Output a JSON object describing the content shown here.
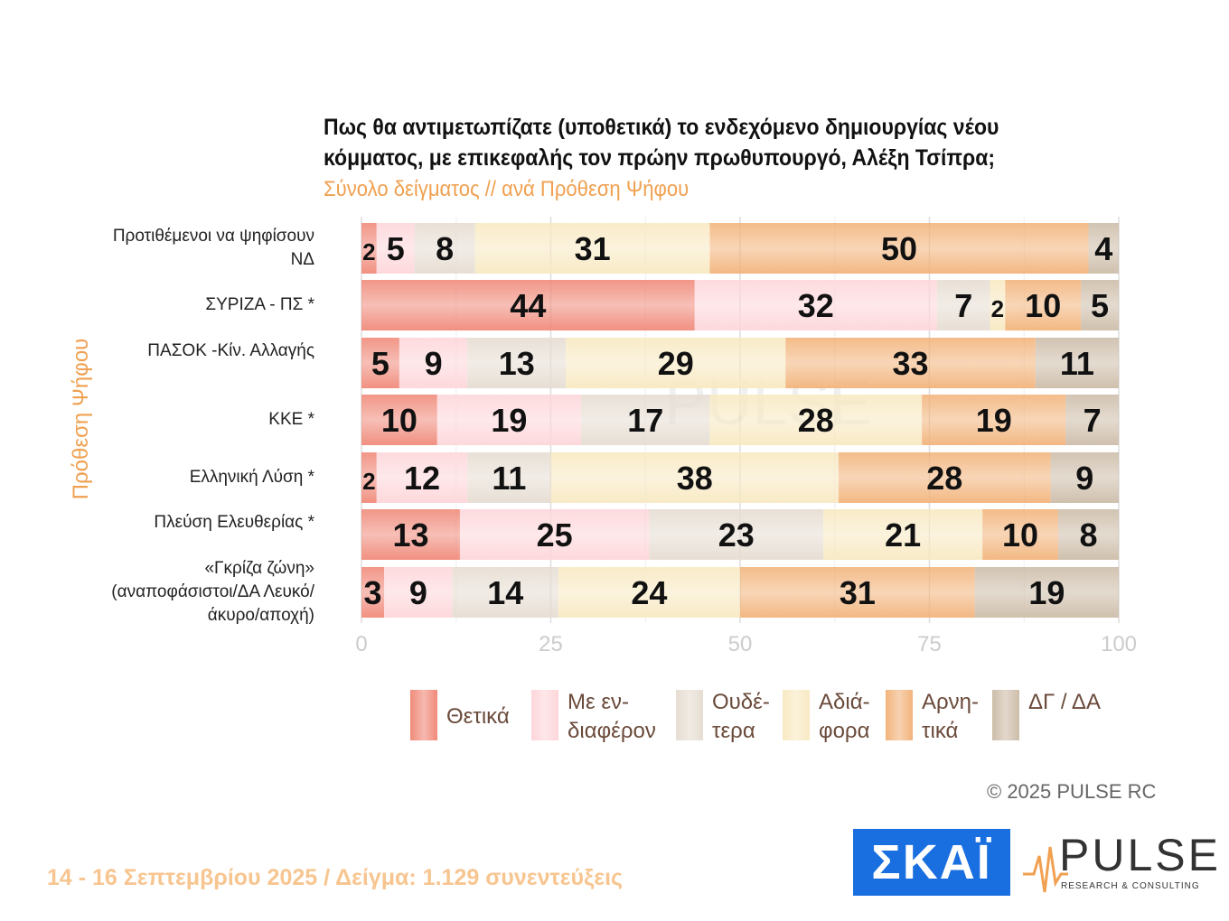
{
  "title": "Πως θα αντιμετωπίζατε (υποθετικά) το ενδεχόμενο δημιουργίας νέου κόμματος, με επικεφαλής τον πρώην πρωθυπουργό, Αλέξη Τσίπρα;",
  "subtitle": "Σύνολο δείγματος // ανά Πρόθεση Ψήφου",
  "watermark": "PULSE RESEARCH & CONSULTING",
  "footer": "14 - 16 Σεπτεμβρίου 2025  /  Δείγμα:  1.129 συνεντεύξεις",
  "copyright": "©  2025  PULSE RC",
  "logos": {
    "skai": "ΣΚΑΪ",
    "pulse": "PULSE",
    "pulse_sub": "RESEARCH & CONSULTING"
  },
  "chart_data": {
    "type": "bar",
    "orientation": "horizontal",
    "stacked": true,
    "ylabel": "Πρόθεση Ψήφου",
    "xlim": [
      0,
      100
    ],
    "xticks": [
      "0",
      "25",
      "50",
      "75",
      "100"
    ],
    "grid": true,
    "legend_position": "bottom",
    "categories": [
      "Προτιθέμενοι να ψηφίσουν ΝΔ",
      "ΣΥΡΙΖΑ - ΠΣ *",
      "ΠΑΣΟΚ -Κίν. Αλλαγής",
      "ΚΚΕ *",
      "Ελληνική Λύση *",
      "Πλεύση Ελευθερίας *",
      "«Γκρίζα ζώνη» (αναποφάσιστοι/ΔΑ Λευκό/άκυρο/αποχή)"
    ],
    "series": [
      {
        "name": "Θετικά",
        "color": "#f08a7a",
        "values": [
          2,
          44,
          5,
          10,
          2,
          13,
          3
        ]
      },
      {
        "name": "Με εν-διαφέρον",
        "color": "#fdd6da",
        "values": [
          5,
          32,
          9,
          19,
          12,
          25,
          9
        ]
      },
      {
        "name": "Ουδέ-τερα",
        "color": "#e6ddd2",
        "values": [
          8,
          7,
          13,
          17,
          11,
          23,
          14
        ]
      },
      {
        "name": "Αδιά-φορα",
        "color": "#f8e9c2",
        "values": [
          31,
          2,
          29,
          28,
          38,
          21,
          24
        ]
      },
      {
        "name": "Αρνη-τικά",
        "color": "#f2b47c",
        "values": [
          50,
          10,
          33,
          19,
          28,
          10,
          31
        ]
      },
      {
        "name": "ΔΓ / ΔΑ",
        "color": "#cdbda9",
        "values": [
          4,
          5,
          11,
          7,
          9,
          8,
          19
        ]
      }
    ]
  }
}
